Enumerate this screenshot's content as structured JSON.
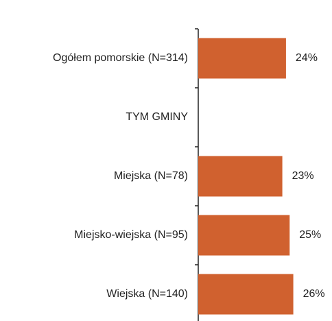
{
  "chart_data": {
    "type": "hbar",
    "categories": [
      "Ogółem pomorskie (N=314)",
      "TYM GMINY",
      "Miejska (N=78)",
      "Miejsko-wiejska (N=95)",
      "Wiejska (N=140)"
    ],
    "values": [
      24,
      null,
      23,
      25,
      26
    ],
    "value_labels": [
      "24%",
      null,
      "23%",
      "25%",
      "26%"
    ],
    "color": "#d0612f"
  }
}
